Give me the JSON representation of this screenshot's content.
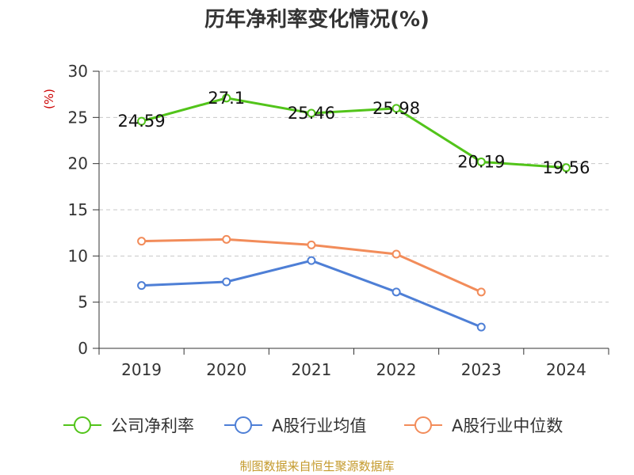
{
  "chart_data": {
    "type": "line",
    "title": "历年净利率变化情况(%)",
    "ylabel": "(%)",
    "xlabel": "",
    "categories": [
      "2019",
      "2020",
      "2021",
      "2022",
      "2023",
      "2024"
    ],
    "ylim": [
      0,
      30
    ],
    "yticks": [
      0,
      5,
      10,
      15,
      20,
      25,
      30
    ],
    "grid": true,
    "legend_position": "bottom",
    "series": [
      {
        "name": "公司净利率",
        "color": "#52c41a",
        "values": [
          24.59,
          27.1,
          25.46,
          25.98,
          20.19,
          19.56
        ],
        "labels": [
          "24.59",
          "27.1",
          "25.46",
          "25.98",
          "20.19",
          "19.56"
        ],
        "show_labels": true
      },
      {
        "name": "A股行业均值",
        "color": "#4e7fd6",
        "values": [
          6.8,
          7.2,
          9.5,
          6.1,
          2.3,
          null
        ],
        "show_labels": false
      },
      {
        "name": "A股行业中位数",
        "color": "#f28c5a",
        "values": [
          11.6,
          11.8,
          11.2,
          10.2,
          6.1,
          null
        ],
        "show_labels": false
      }
    ]
  },
  "source": "制图数据来自恒生聚源数据库"
}
